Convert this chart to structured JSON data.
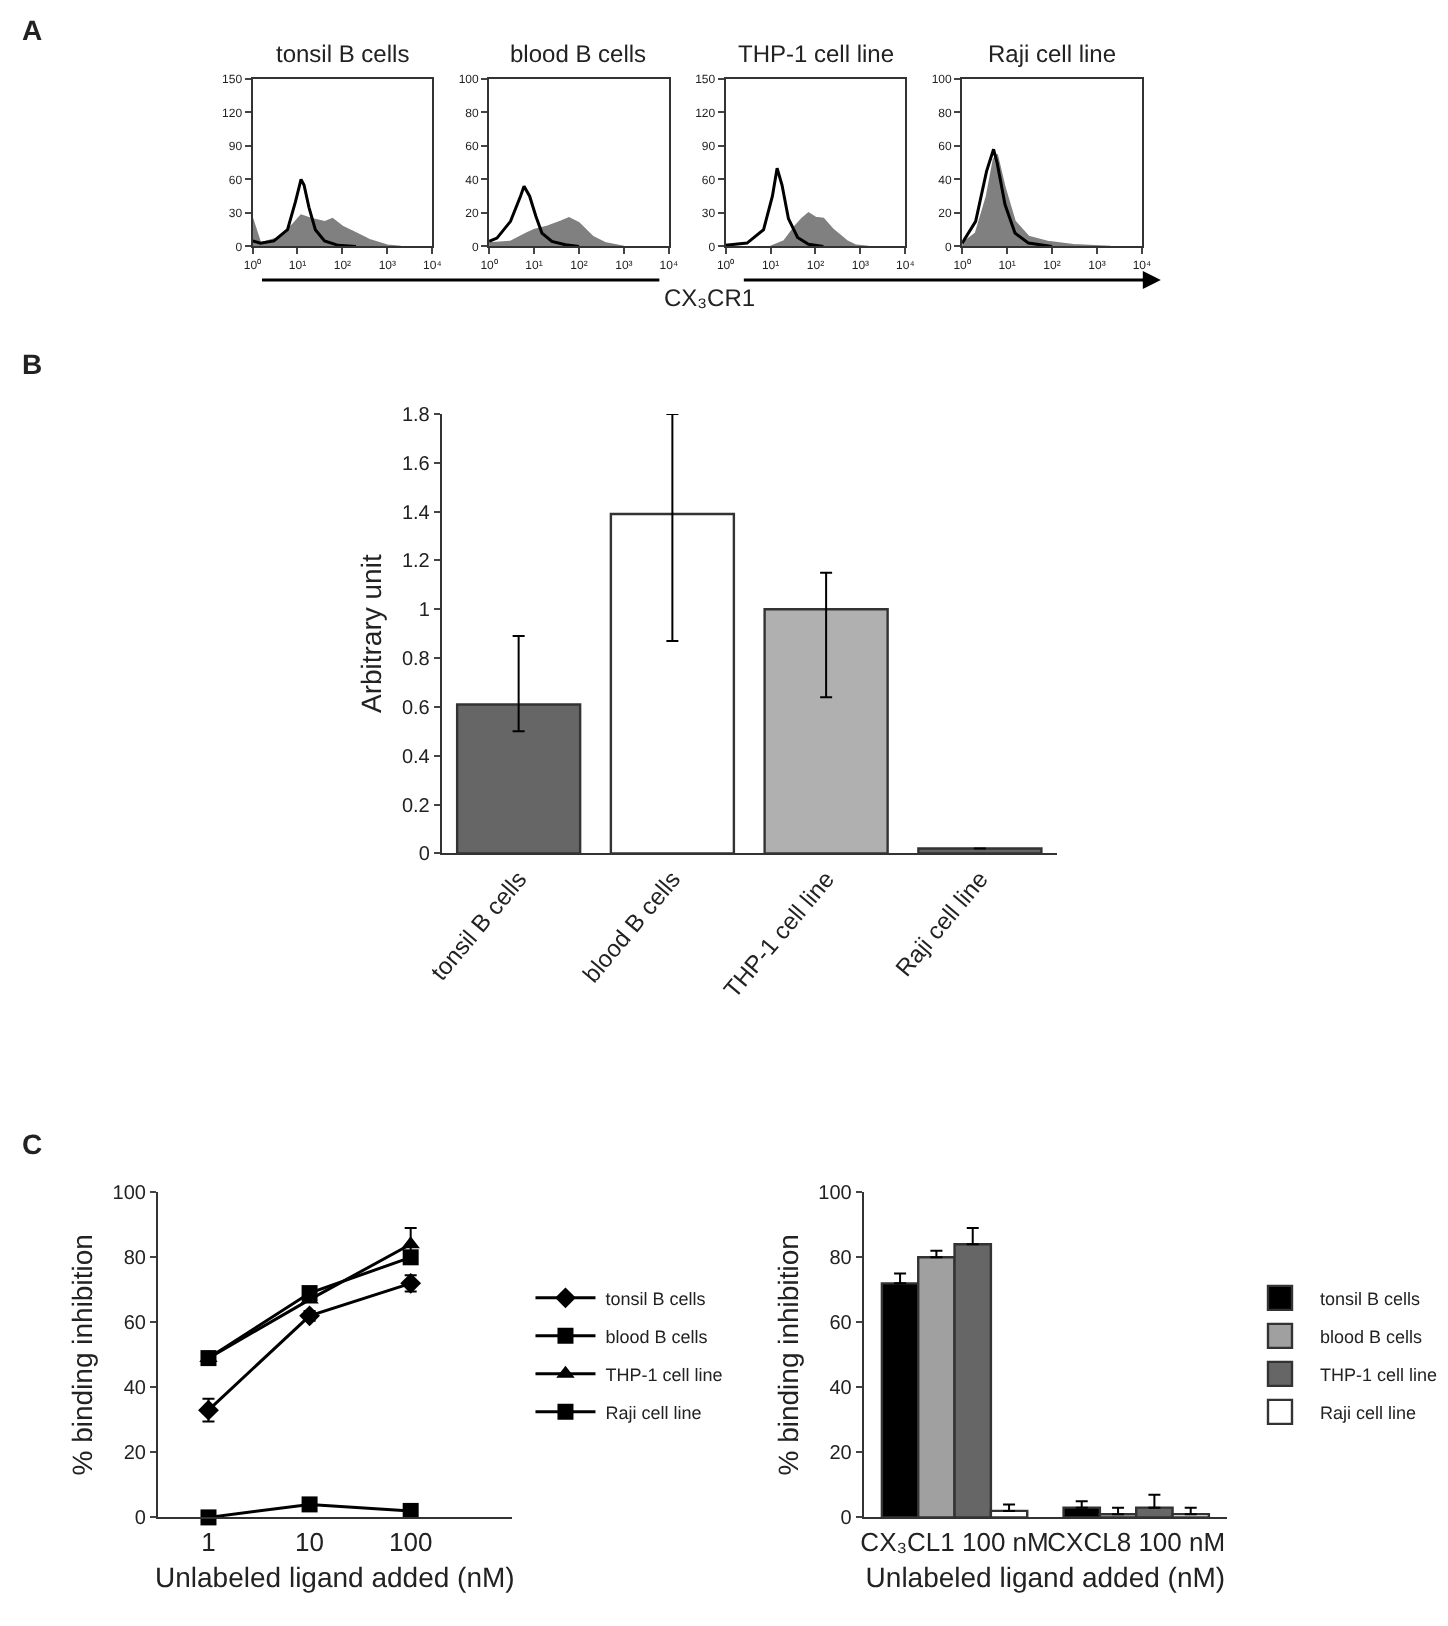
{
  "chart_data": [
    {
      "type": "area",
      "title": "tonsil B cells",
      "annotations": [
        "A"
      ],
      "log": "x",
      "xlim": [
        1,
        10000
      ],
      "xticks": [
        {
          "value": 1,
          "label": "10⁰"
        },
        {
          "value": 10,
          "label": "10¹"
        },
        {
          "value": 100,
          "label": "10²"
        },
        {
          "value": 1000,
          "label": "10³"
        },
        {
          "value": 10000,
          "label": "10⁴"
        }
      ],
      "ylim": [
        0,
        150
      ],
      "yticks": [
        0,
        30,
        60,
        90,
        120,
        150
      ],
      "series": [
        {
          "type": "area",
          "color": "#808080",
          "x": [
            1,
            1.5,
            4,
            8,
            12,
            20,
            40,
            60,
            100,
            200,
            400,
            1000,
            2000
          ],
          "values": [
            25,
            3,
            8,
            20,
            28,
            25,
            22,
            25,
            18,
            12,
            6,
            1,
            0
          ]
        },
        {
          "type": "line",
          "color": "#000000",
          "x": [
            1,
            1.5,
            3,
            6,
            9,
            12,
            14,
            18,
            25,
            40,
            80,
            200
          ],
          "values": [
            5,
            3,
            5,
            15,
            40,
            60,
            55,
            35,
            15,
            5,
            1,
            0
          ]
        }
      ]
    },
    {
      "type": "area",
      "title": "blood B cells",
      "xlabel": "CX₃CR1",
      "log": "x",
      "xlim": [
        1,
        10000
      ],
      "xticks": [
        {
          "value": 1,
          "label": "10⁰"
        },
        {
          "value": 10,
          "label": "10¹"
        },
        {
          "value": 100,
          "label": "10²"
        },
        {
          "value": 1000,
          "label": "10³"
        },
        {
          "value": 10000,
          "label": "10⁴"
        }
      ],
      "ylim": [
        0,
        100
      ],
      "yticks": [
        0,
        20,
        40,
        60,
        80,
        100
      ],
      "series": [
        {
          "type": "area",
          "color": "#808080",
          "x": [
            1,
            3,
            7,
            10,
            20,
            40,
            60,
            100,
            200,
            400,
            1000
          ],
          "values": [
            2,
            3,
            8,
            10,
            12,
            15,
            17,
            14,
            6,
            2,
            0
          ]
        },
        {
          "type": "line",
          "color": "#000000",
          "x": [
            1,
            1.5,
            3,
            5,
            6,
            8,
            11,
            15,
            25,
            50,
            100
          ],
          "values": [
            3,
            5,
            15,
            30,
            36,
            30,
            18,
            8,
            3,
            1,
            0
          ]
        }
      ]
    },
    {
      "type": "area",
      "title": "THP-1 cell line",
      "log": "x",
      "xlim": [
        1,
        10000
      ],
      "xticks": [
        {
          "value": 1,
          "label": "10⁰"
        },
        {
          "value": 10,
          "label": "10¹"
        },
        {
          "value": 100,
          "label": "10²"
        },
        {
          "value": 1000,
          "label": "10³"
        },
        {
          "value": 10000,
          "label": "10⁴"
        }
      ],
      "ylim": [
        0,
        150
      ],
      "yticks": [
        0,
        30,
        60,
        90,
        120,
        150
      ],
      "series": [
        {
          "type": "area",
          "color": "#808080",
          "x": [
            10,
            20,
            35,
            50,
            70,
            100,
            150,
            250,
            500,
            800,
            1500
          ],
          "values": [
            0,
            5,
            18,
            25,
            30,
            26,
            25,
            15,
            5,
            1,
            0
          ]
        },
        {
          "type": "line",
          "color": "#000000",
          "x": [
            1,
            3,
            7,
            11,
            14,
            18,
            25,
            40,
            70,
            150
          ],
          "values": [
            1,
            3,
            15,
            45,
            70,
            55,
            25,
            8,
            2,
            0
          ]
        }
      ]
    },
    {
      "type": "area",
      "title": "Raji cell line",
      "log": "x",
      "xlim": [
        1,
        10000
      ],
      "xticks": [
        {
          "value": 1,
          "label": "10⁰"
        },
        {
          "value": 10,
          "label": "10¹"
        },
        {
          "value": 100,
          "label": "10²"
        },
        {
          "value": 1000,
          "label": "10³"
        },
        {
          "value": 10000,
          "label": "10⁴"
        }
      ],
      "ylim": [
        0,
        100
      ],
      "yticks": [
        0,
        20,
        40,
        60,
        80,
        100
      ],
      "series": [
        {
          "type": "area",
          "color": "#808080",
          "x": [
            1,
            2,
            3.5,
            5,
            6,
            9,
            15,
            30,
            80,
            300,
            2000
          ],
          "values": [
            2,
            8,
            30,
            52,
            55,
            35,
            15,
            6,
            3,
            1,
            0
          ]
        },
        {
          "type": "line",
          "color": "#000000",
          "x": [
            1,
            2,
            3.5,
            5,
            6,
            9,
            15,
            30,
            100
          ],
          "values": [
            2,
            15,
            45,
            58,
            50,
            25,
            8,
            2,
            0
          ]
        }
      ]
    },
    {
      "type": "bar",
      "annotations": [
        "B"
      ],
      "ylabel": "Arbitrary unit",
      "categories": [
        "tonsil B cells",
        "blood B cells",
        "THP-1 cell line",
        "Raji cell line"
      ],
      "values": [
        0.61,
        1.39,
        1.0,
        0.02
      ],
      "colors": [
        "#666666",
        "#ffffff",
        "#b0b0b0",
        "#666666"
      ],
      "errors": [
        [
          0.5,
          0.89
        ],
        [
          0.87,
          1.8
        ],
        [
          0.64,
          1.15
        ],
        null
      ],
      "ylim": [
        0,
        1.8
      ],
      "yticks": [
        0,
        0.2,
        0.4,
        0.6,
        0.8,
        1,
        1.2,
        1.4,
        1.6,
        1.8
      ]
    },
    {
      "type": "line",
      "annotations": [
        "C"
      ],
      "xlabel": "Unlabeled ligand added (nM)",
      "ylabel": "% binding inhibition",
      "categories": [
        "1",
        "10",
        "100"
      ],
      "ylim": [
        0,
        100
      ],
      "yticks": [
        0,
        20,
        40,
        60,
        80,
        100
      ],
      "legend": "right",
      "series": [
        {
          "name": "tonsil B cells",
          "color": "#000000",
          "marker": "diamond",
          "values": [
            33,
            62,
            72
          ],
          "errors": [
            3.5,
            1.5,
            2.5
          ]
        },
        {
          "name": "blood B cells",
          "color": "#000000",
          "marker": "square",
          "values": [
            49,
            69,
            80
          ]
        },
        {
          "name": "THP-1 cell line",
          "color": "#000000",
          "marker": "triangle",
          "values": [
            49,
            67,
            84
          ],
          "errors": [
            null,
            null,
            5
          ]
        },
        {
          "name": "Raji cell line",
          "color": "#000000",
          "marker": "square",
          "values": [
            0,
            4,
            2
          ]
        }
      ]
    },
    {
      "type": "bar",
      "xlabel": "Unlabeled ligand added (nM)",
      "ylabel": "% binding inhibition",
      "categories": [
        "CX₃CL1 100 nM",
        "CXCL8 100 nM"
      ],
      "ylim": [
        0,
        100
      ],
      "yticks": [
        0,
        20,
        40,
        60,
        80,
        100
      ],
      "legend": "right",
      "series": [
        {
          "name": "tonsil B cells",
          "color": "#000000",
          "values": [
            72,
            3
          ],
          "errors": [
            [
              72,
              75
            ],
            [
              3,
              5
            ]
          ]
        },
        {
          "name": "blood B cells",
          "color": "#a0a0a0",
          "values": [
            80,
            1
          ],
          "errors": [
            [
              80,
              82
            ],
            [
              1,
              3
            ]
          ]
        },
        {
          "name": "THP-1 cell line",
          "color": "#666666",
          "values": [
            84,
            3
          ],
          "errors": [
            [
              84,
              89
            ],
            [
              3,
              7
            ]
          ]
        },
        {
          "name": "Raji cell line",
          "color": "#ffffff",
          "values": [
            2,
            1
          ],
          "errors": [
            [
              2,
              4
            ],
            [
              1,
              3
            ]
          ]
        }
      ]
    }
  ]
}
